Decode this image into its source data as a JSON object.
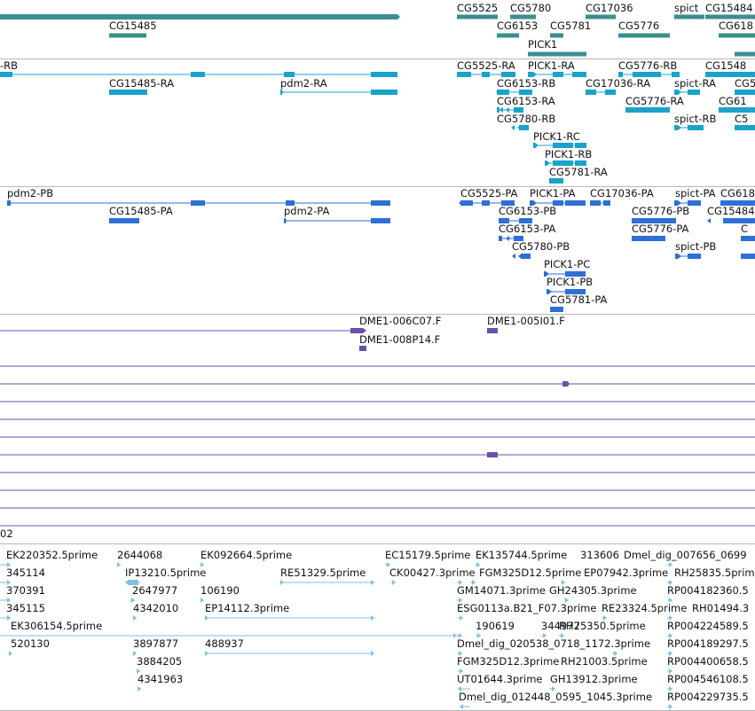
{
  "colors": {
    "gene": "#3d8e8e",
    "mrna": "#1aa3c9",
    "cds": "#2e6fd6",
    "cdna": "#6b4fa8",
    "est": "#7fbfe4",
    "separator": "#b8b8b8"
  },
  "tracks": {
    "genes": {
      "labels": [
        "CG15485",
        "CG5525",
        "CG5780",
        "CG17036",
        "spict",
        "CG15484",
        "CG6153",
        "CG5781",
        "CG5776",
        "CG618",
        "PICK1"
      ]
    },
    "transcripts": {
      "labels": [
        "-RB",
        "CG15485-RA",
        "pdm2-RA",
        "CG5525-RA",
        "PICK1-RA",
        "CG5776-RB",
        "CG1548",
        "CG6153-RB",
        "CG17036-RA",
        "spict-RA",
        "CG5",
        "CG6153-RA",
        "CG5776-RA",
        "CG61",
        "CG5780-RB",
        "spict-RB",
        "C5",
        "PICK1-RC",
        "PICK1-RB",
        "CG5781-RA"
      ]
    },
    "proteins": {
      "labels": [
        "pdm2-PB",
        "CG15485-PA",
        "pdm2-PA",
        "CG5525-PA",
        "PICK1-PA",
        "CG17036-PA",
        "spict-PA",
        "CG618",
        "CG6153-PB",
        "CG5776-PB",
        "CG15484",
        "CG6153-PA",
        "CG5776-PA",
        "C",
        "CG5780-PB",
        "spict-PB",
        "PICK1-PC",
        "PICK1-PB",
        "CG5781-PA"
      ]
    },
    "cdna": {
      "labels": [
        "DME1-006C07.F",
        "DME1-005I01.F",
        "DME1-008P14.F",
        "02"
      ]
    },
    "ests": {
      "labels": [
        "EK220352.5prime",
        "2644068",
        "EK092664.5prime",
        "EC15179.5prime",
        "EK135744.5prime",
        "313606",
        "Dmel_dig_007656_0699",
        "345114",
        "IP13210.5prime",
        "RE51329.5prime",
        "CK00427.3prime",
        "FGM325D12.5prime",
        "EP07942.3prime",
        "RH25835.5prim",
        "370391",
        "2647977",
        "106190",
        "GM14071.3prime",
        "GH24305.3prime",
        "RP004182360.5",
        "345115",
        "4342010",
        "EP14112.3prime",
        "ESG0113a.B21_F07.3prime",
        "RE23324.5prime",
        "RH01494.3",
        "EK306154.5prime",
        "190619",
        "344977",
        "RH25350.5prime",
        "RP004224589.5",
        "520130",
        "3897877",
        "488937",
        "Dmel_dig_020538_0718_1172.3prime",
        "RP004189297.5",
        "3884205",
        "FGM325D12.3prime",
        "RH21003.5prime",
        "RP004400658.5",
        "4341963",
        "UT01644.3prime",
        "GH13912.3prime",
        "RP004546108.5",
        "Dmel_dig_012448_0595_1045.3prime",
        "RP004229735.5"
      ]
    }
  }
}
